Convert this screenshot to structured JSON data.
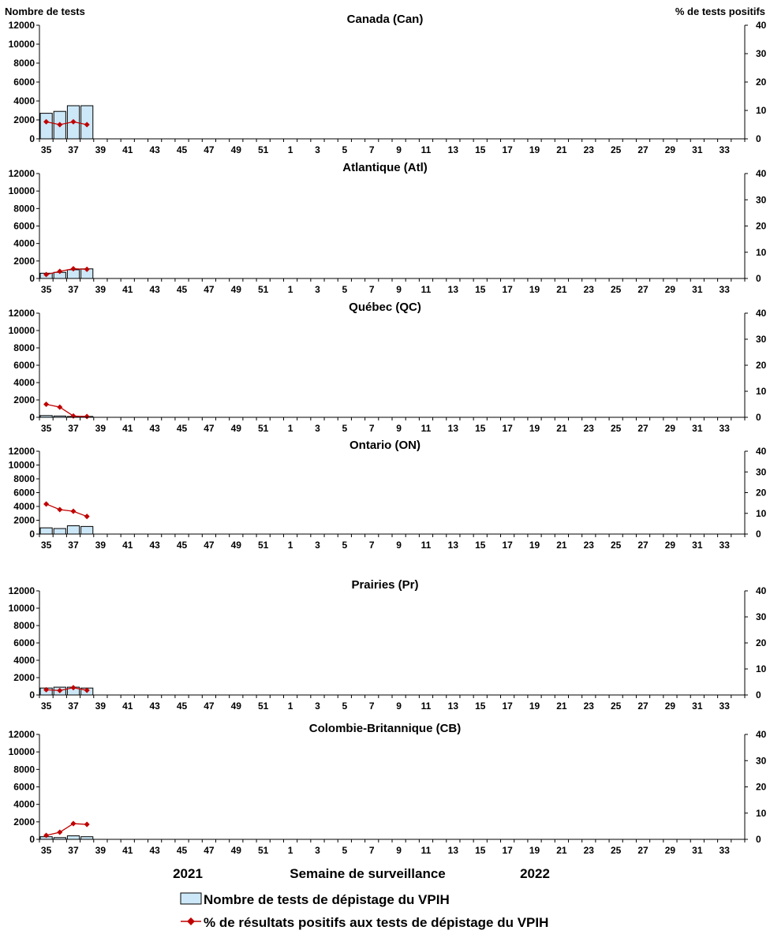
{
  "chart_data": {
    "type": "bar-line-combo",
    "left_axis_title": "Nombre de tests",
    "right_axis_title": "% de tests positifs",
    "xlabel": "Semaine de surveillance",
    "year_labels": [
      "2021",
      "2022"
    ],
    "x_tick_labels": [
      "35",
      "37",
      "39",
      "41",
      "43",
      "45",
      "47",
      "49",
      "51",
      "1",
      "3",
      "5",
      "7",
      "9",
      "11",
      "13",
      "15",
      "17",
      "19",
      "21",
      "23",
      "25",
      "27",
      "29",
      "31",
      "33"
    ],
    "weeks": [
      "35",
      "36",
      "37",
      "38",
      "39",
      "40",
      "41",
      "42",
      "43",
      "44",
      "45",
      "46",
      "47",
      "48",
      "49",
      "50",
      "51",
      "52",
      "1",
      "2",
      "3",
      "4",
      "5",
      "6",
      "7",
      "8",
      "9",
      "10",
      "11",
      "12",
      "13",
      "14",
      "15",
      "16",
      "17",
      "18",
      "19",
      "20",
      "21",
      "22",
      "23",
      "24",
      "25",
      "26",
      "27",
      "28",
      "29",
      "30",
      "31",
      "32",
      "33",
      "34"
    ],
    "ylim_left": [
      0,
      12000
    ],
    "yticks_left": [
      "0",
      "2000",
      "4000",
      "6000",
      "8000",
      "10000",
      "12000"
    ],
    "ylim_right": [
      0,
      40
    ],
    "yticks_right": [
      "0",
      "10",
      "20",
      "30",
      "40"
    ],
    "legend": {
      "bars": "Nombre de tests de dépistage du VPIH",
      "line": "% de résultats positifs aux tests de dépistage du VPIH"
    },
    "colors": {
      "bar_fill": "#cce8f8",
      "bar_stroke": "#000000",
      "line": "#c00000"
    },
    "panels": [
      {
        "title": "Canada (Can)",
        "tests": [
          2700,
          2900,
          3500,
          3500
        ],
        "pct_positive": [
          6.0,
          5.0,
          6.0,
          5.0
        ]
      },
      {
        "title": "Atlantique (Atl)",
        "tests": [
          600,
          700,
          1000,
          1100
        ],
        "pct_positive": [
          1.5,
          2.7,
          3.7,
          3.5
        ]
      },
      {
        "title": "Québec (QC)",
        "tests": [
          200,
          150,
          100,
          100
        ],
        "pct_positive": [
          5.0,
          3.9,
          0.5,
          0.3
        ]
      },
      {
        "title": "Ontario (ON)",
        "tests": [
          900,
          800,
          1200,
          1100
        ],
        "pct_positive": [
          14.5,
          11.8,
          11.0,
          8.5
        ]
      },
      {
        "title": "Prairies (Pr)",
        "tests": [
          800,
          900,
          900,
          800
        ],
        "pct_positive": [
          2.0,
          1.7,
          2.8,
          1.8
        ]
      },
      {
        "title": "Colombie-Britannique (CB)",
        "tests": [
          300,
          200,
          400,
          300
        ],
        "pct_positive": [
          1.5,
          2.7,
          6.0,
          5.7
        ]
      }
    ]
  }
}
